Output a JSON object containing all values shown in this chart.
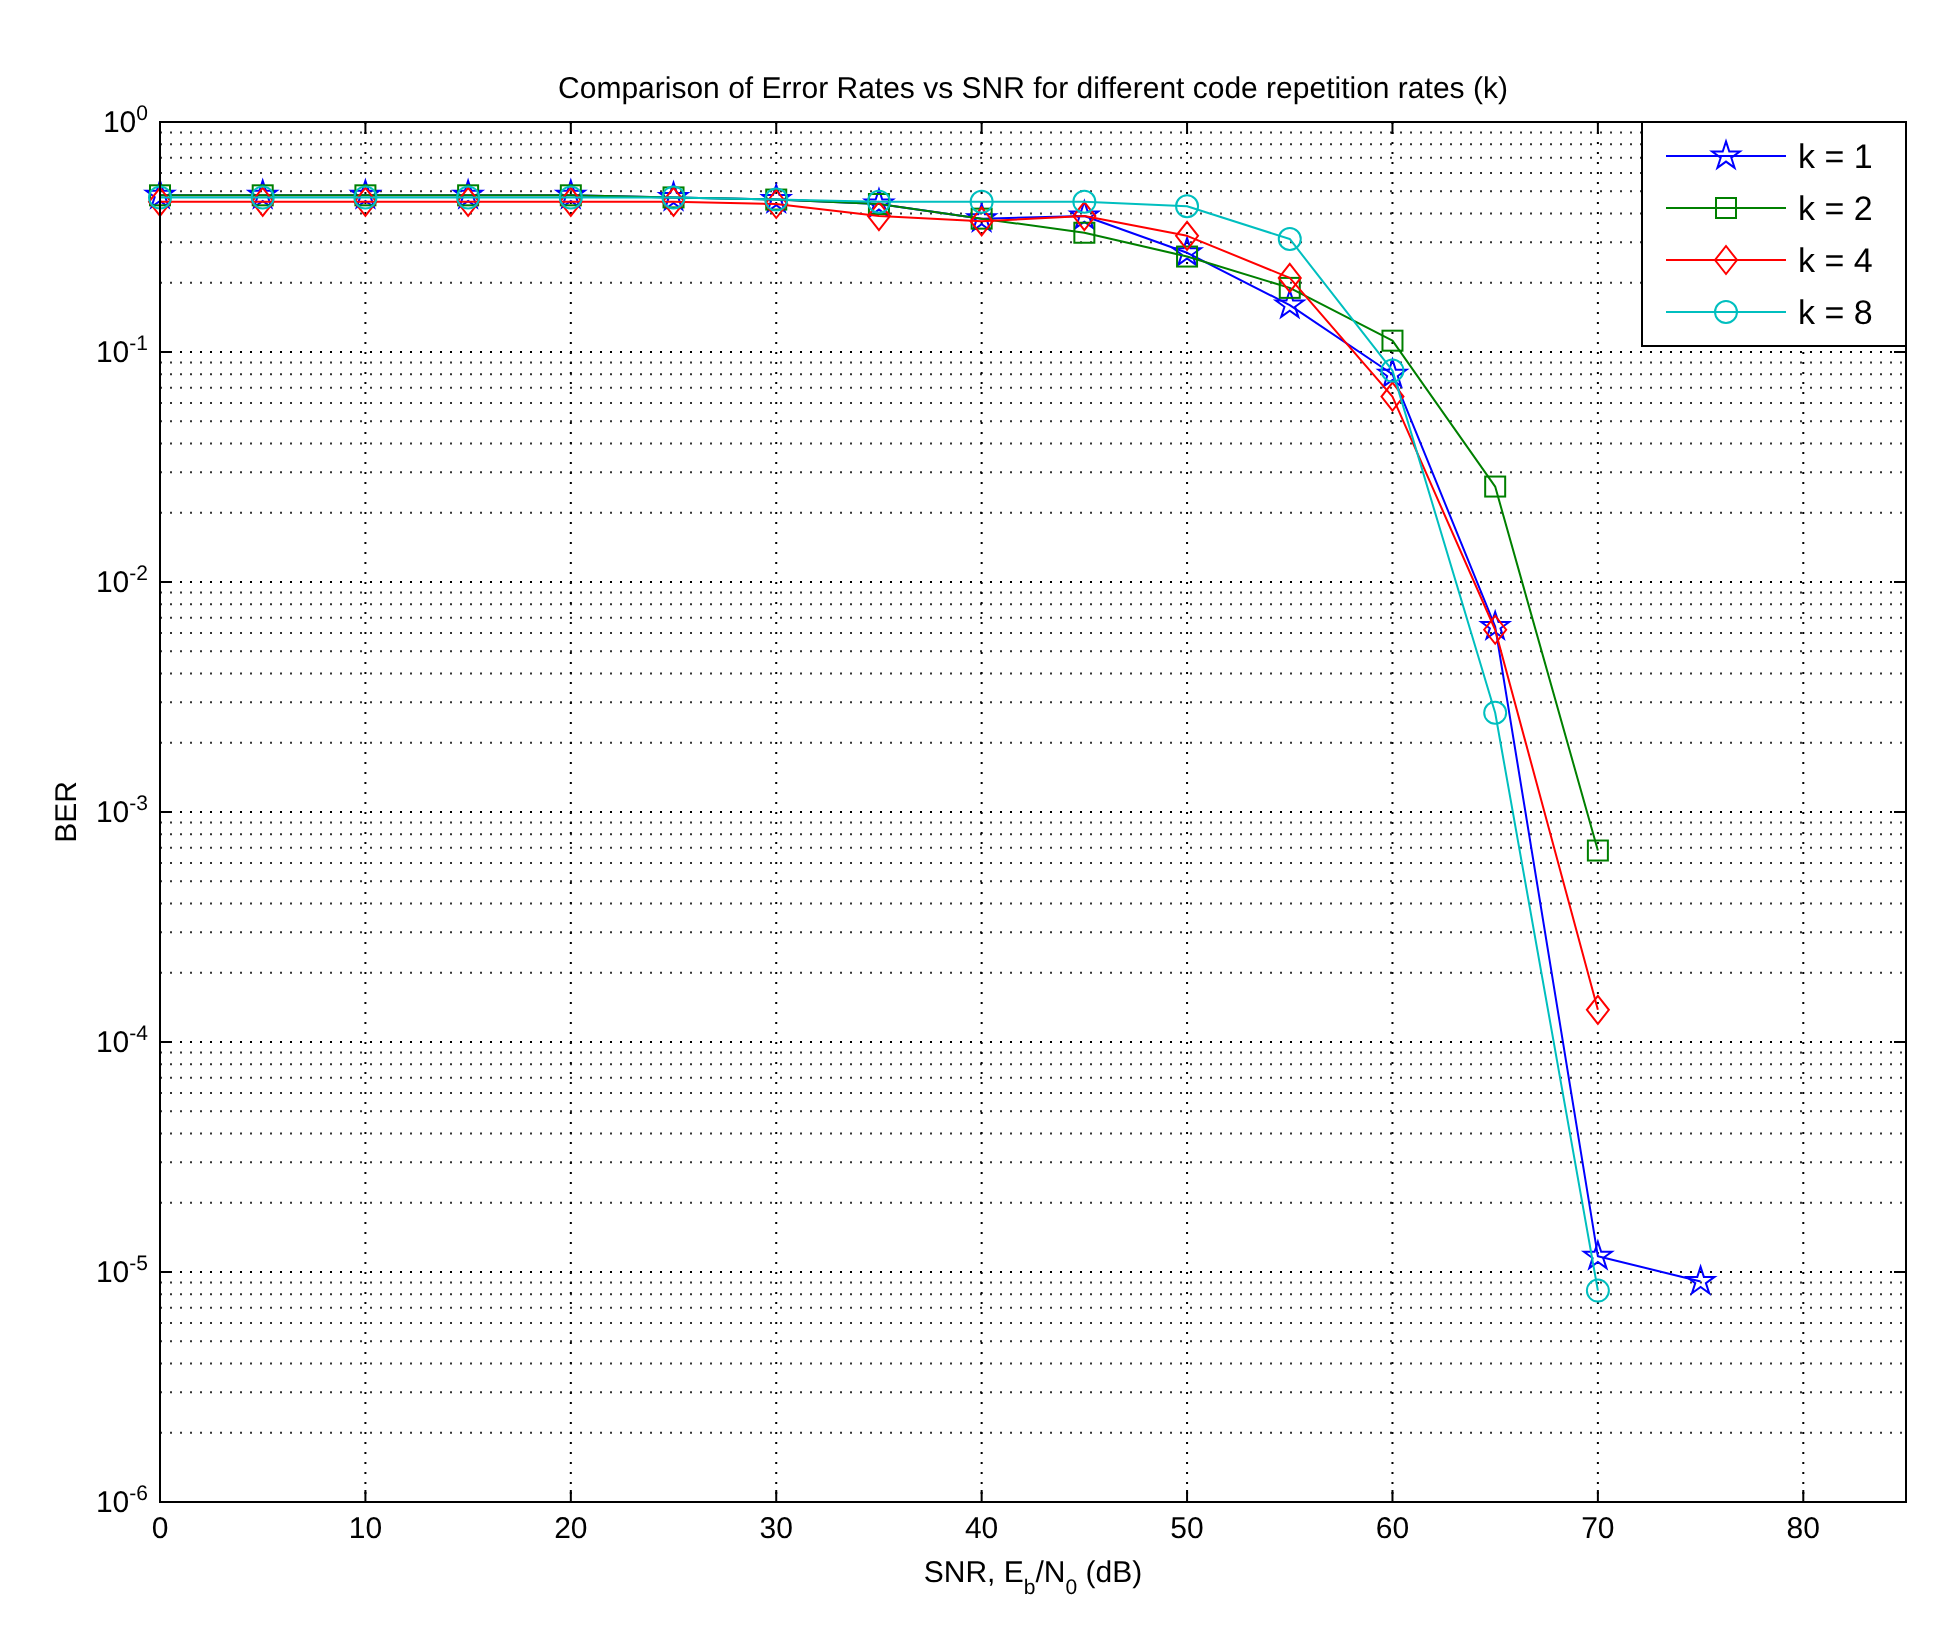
{
  "chart_data": {
    "type": "line",
    "title": "Comparison of Error Rates vs SNR for different code repetition rates (k)",
    "xlabel": "SNR, E$_{b}$/N$_{0}$ (dB)",
    "ylabel": "BER",
    "log": "y",
    "grid": true,
    "legend": "top right",
    "line_style": "solid",
    "x": [
      0,
      5,
      10,
      15,
      20,
      25,
      30,
      35,
      40,
      45,
      50,
      55,
      60,
      65,
      70,
      75
    ],
    "xlim": [
      0,
      85
    ],
    "xticks": [
      0,
      10,
      20,
      30,
      40,
      50,
      60,
      70,
      80
    ],
    "ylim": [
      1e-06,
      1
    ],
    "yticks": [
      {
        "value": 1,
        "label": "10$^{0}$"
      },
      {
        "value": 0.1,
        "label": "10$^{-1}$"
      },
      {
        "value": 0.01,
        "label": "10$^{-2}$"
      },
      {
        "value": 0.001,
        "label": "10$^{-3}$"
      },
      {
        "value": 0.0001,
        "label": "10$^{-4}$"
      },
      {
        "value": 1e-05,
        "label": "10$^{-5}$"
      },
      {
        "value": 1e-06,
        "label": "10$^{-6}$"
      }
    ],
    "series": [
      {
        "name": "k = 1",
        "color": "#0000ff",
        "marker": "star",
        "values": [
          0.48,
          0.48,
          0.48,
          0.48,
          0.48,
          0.47,
          0.46,
          0.44,
          0.38,
          0.39,
          0.27,
          0.16,
          0.08,
          0.0064,
          1.17e-05,
          9.1e-06
        ]
      },
      {
        "name": "k = 2",
        "color": "#008000",
        "marker": "square",
        "values": [
          0.48,
          0.48,
          0.48,
          0.48,
          0.48,
          0.47,
          0.46,
          0.44,
          0.38,
          0.33,
          0.26,
          0.19,
          0.112,
          0.026,
          0.00068,
          null
        ]
      },
      {
        "name": "k = 4",
        "color": "#ff0000",
        "marker": "diamond",
        "values": [
          0.45,
          0.45,
          0.45,
          0.45,
          0.45,
          0.45,
          0.44,
          0.39,
          0.37,
          0.39,
          0.32,
          0.21,
          0.064,
          0.0062,
          0.000138,
          null
        ]
      },
      {
        "name": "k = 8",
        "color": "#00bfbf",
        "marker": "circle",
        "values": [
          0.47,
          0.47,
          0.47,
          0.47,
          0.47,
          0.47,
          0.46,
          0.45,
          0.45,
          0.45,
          0.43,
          0.31,
          0.083,
          0.0027,
          8.3e-06,
          null
        ]
      }
    ]
  }
}
